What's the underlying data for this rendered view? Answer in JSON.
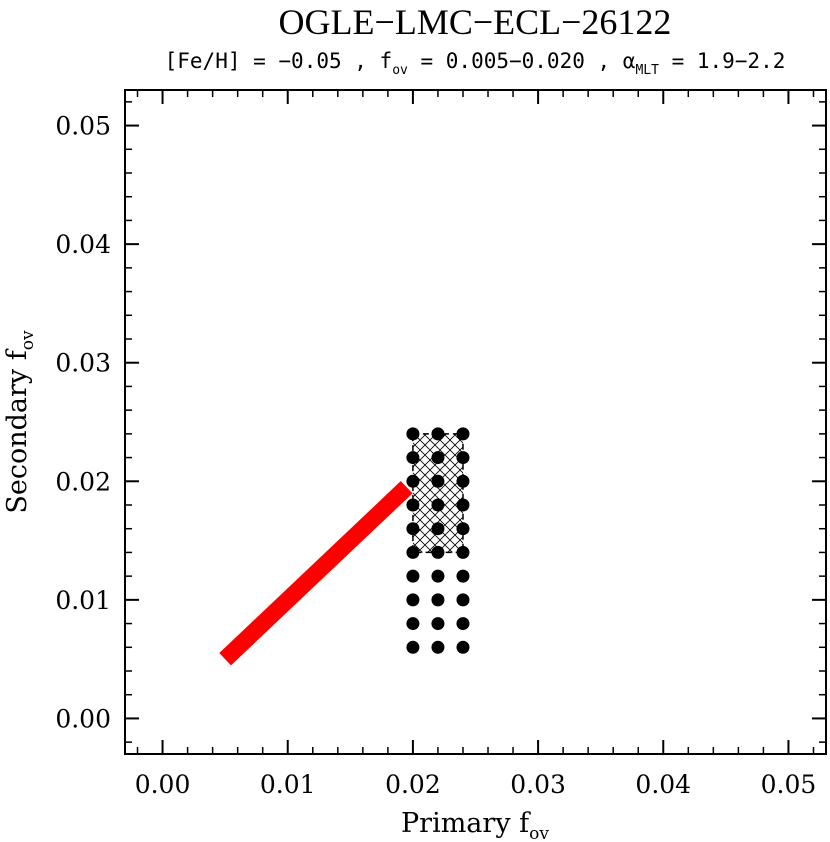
{
  "chart_data": {
    "type": "scatter",
    "title": "OGLE−LMC−ECL−26122",
    "subtitle": [
      "[Fe/H] = −0.05 , f",
      "ov",
      " = 0.005−0.020 , α",
      "MLT",
      " = 1.9−2.2"
    ],
    "xlabel": [
      "Primary f",
      "ov"
    ],
    "ylabel": [
      "Secondary f",
      "ov"
    ],
    "xlim": [
      -0.003,
      0.053
    ],
    "ylim": [
      -0.003,
      0.053
    ],
    "xticks": [
      {
        "value": 0,
        "label": "0.00"
      },
      0.01,
      0.02,
      0.03,
      0.04,
      0.05
    ],
    "yticks": [
      {
        "value": 0,
        "label": "0.00"
      },
      0.01,
      0.02,
      0.03,
      0.04,
      0.05
    ],
    "xminorticks": [
      -0.002,
      0.002,
      0.004,
      0.006,
      0.008,
      0.012,
      0.014,
      0.016,
      0.018,
      0.022,
      0.024,
      0.026,
      0.028,
      0.032,
      0.034,
      0.036,
      0.038,
      0.042,
      0.044,
      0.046,
      0.048,
      0.052
    ],
    "yminorticks": [
      -0.002,
      0.002,
      0.004,
      0.006,
      0.008,
      0.012,
      0.014,
      0.016,
      0.018,
      0.022,
      0.024,
      0.026,
      0.028,
      0.032,
      0.034,
      0.036,
      0.038,
      0.042,
      0.044,
      0.046,
      0.048,
      0.052
    ],
    "region": {
      "xlim": [
        0.02,
        0.024
      ],
      "ylim": [
        0.014,
        0.024
      ]
    },
    "series": [
      {
        "type": "line",
        "color": "#ff0000",
        "x": [
          0.005,
          0.0195
        ],
        "y": [
          0.005,
          0.0195
        ]
      },
      {
        "type": "scatter",
        "color": "#000000",
        "x": [
          0.02,
          0.02,
          0.02,
          0.02,
          0.02,
          0.02,
          0.02,
          0.02,
          0.02,
          0.02,
          0.022,
          0.022,
          0.022,
          0.022,
          0.022,
          0.022,
          0.022,
          0.022,
          0.022,
          0.022,
          0.024,
          0.024,
          0.024,
          0.024,
          0.024,
          0.024,
          0.024,
          0.024,
          0.024,
          0.024
        ],
        "y": [
          0.006,
          0.008,
          0.01,
          0.012,
          0.014,
          0.016,
          0.018,
          0.02,
          0.022,
          0.024,
          0.006,
          0.008,
          0.01,
          0.012,
          0.014,
          0.016,
          0.018,
          0.02,
          0.022,
          0.024,
          0.006,
          0.008,
          0.01,
          0.012,
          0.014,
          0.016,
          0.018,
          0.02,
          0.022,
          0.024
        ]
      }
    ]
  }
}
